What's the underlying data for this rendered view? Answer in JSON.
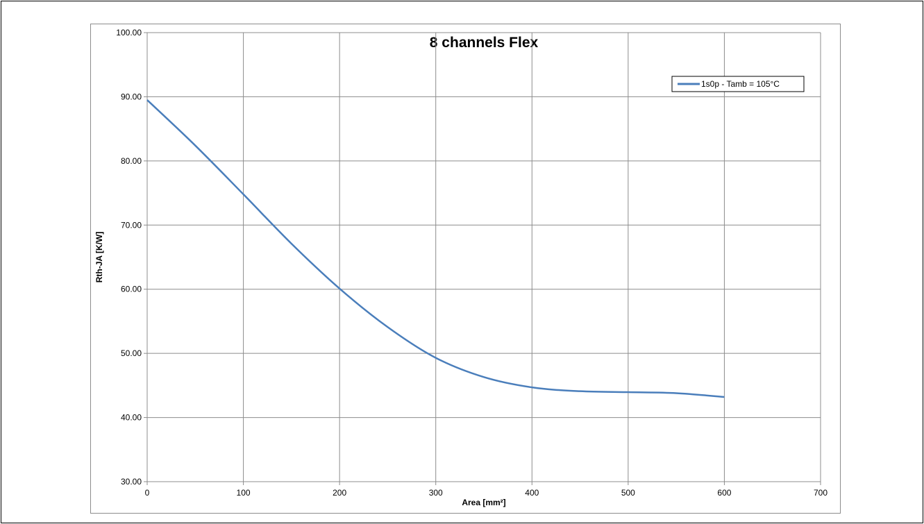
{
  "chart_data": {
    "type": "line",
    "title": "8 channels Flex",
    "xlabel": "Area [mm²]",
    "ylabel": "Rth-JA [K/W]",
    "xlim": [
      0,
      700
    ],
    "ylim": [
      30,
      100
    ],
    "x_ticks": [
      "0",
      "100",
      "200",
      "300",
      "400",
      "500",
      "600",
      "700"
    ],
    "y_ticks": [
      "30.00",
      "40.00",
      "50.00",
      "60.00",
      "70.00",
      "80.00",
      "90.00",
      "100.00"
    ],
    "grid": true,
    "legend_position": "top-right",
    "series": [
      {
        "name": "1s0p - Tamb = 105°C",
        "color": "#4a7ebb",
        "x": [
          0,
          50,
          100,
          150,
          200,
          250,
          300,
          350,
          400,
          450,
          500,
          550,
          600
        ],
        "y": [
          89.5,
          82.4,
          74.8,
          67.1,
          60.1,
          54.1,
          49.3,
          46.3,
          44.7,
          44.1,
          43.95,
          43.8,
          43.2
        ]
      }
    ]
  }
}
